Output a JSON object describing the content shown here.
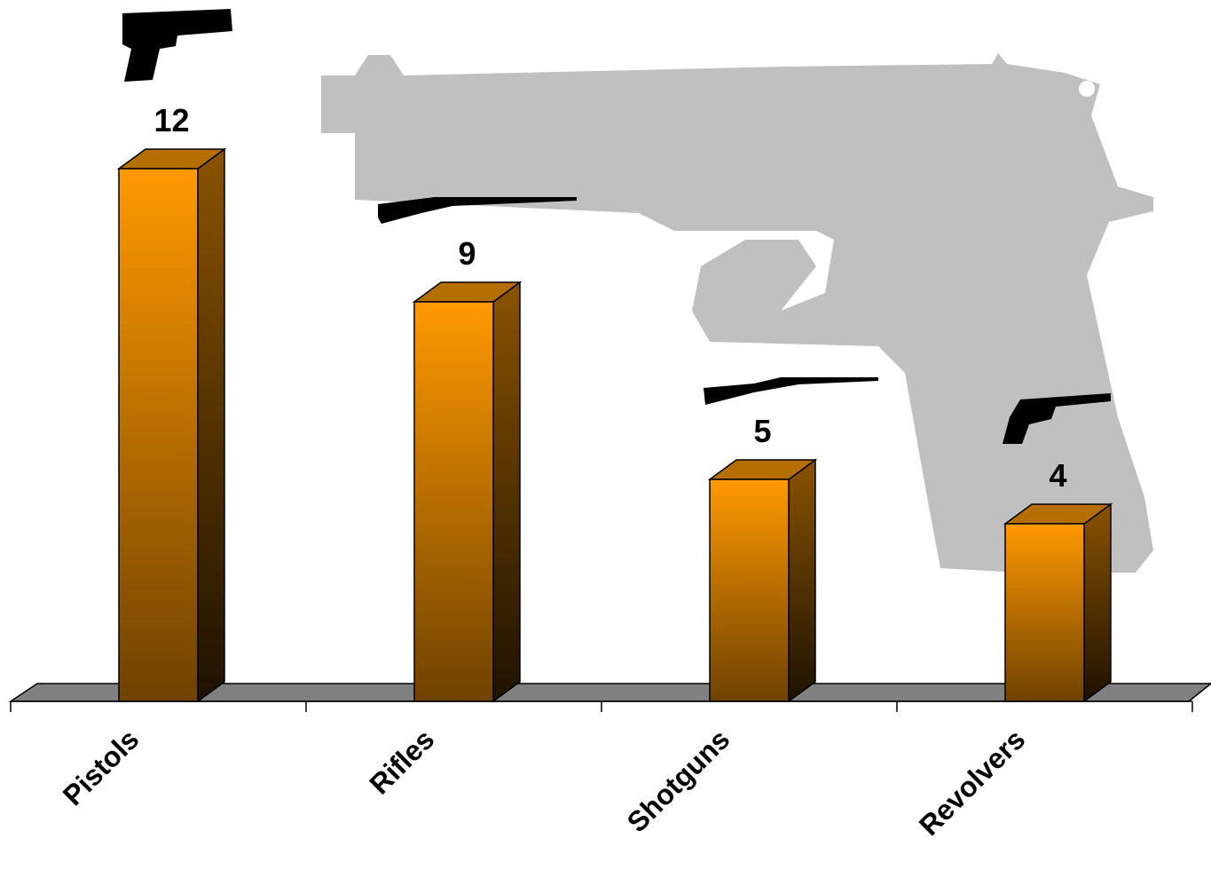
{
  "chart_data": {
    "type": "bar",
    "categories": [
      "Pistols",
      "Rifles",
      "Shotguns",
      "Revolvers"
    ],
    "values": [
      12,
      9,
      5,
      4
    ],
    "color": "#ff9900"
  }
}
